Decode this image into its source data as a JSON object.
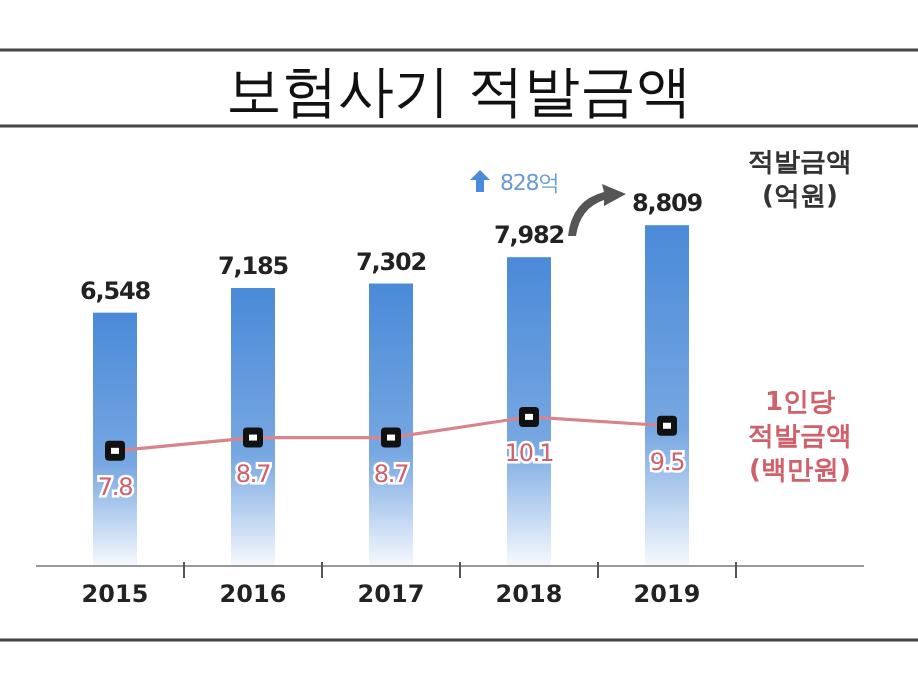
{
  "chart_data": {
    "type": "bar",
    "title": "보험사기 적발금액",
    "categories": [
      "2015",
      "2016",
      "2017",
      "2018",
      "2019"
    ],
    "series": [
      {
        "name": "적발금액 (억원)",
        "color": "#4a8ad8",
        "values": [
          6548,
          7185,
          7302,
          7982,
          8809
        ],
        "value_labels": [
          "6,548",
          "7,185",
          "7,302",
          "7,982",
          "8,809"
        ]
      },
      {
        "name": "1인당 적발금액 (백만원)",
        "type": "line",
        "axis": "y2",
        "color": "#d8848c",
        "marker": "square",
        "values": [
          7.8,
          8.7,
          8.7,
          10.1,
          9.5
        ]
      }
    ],
    "data_labels": true,
    "tick_labels": "x",
    "legend": "right",
    "annotations": [
      "828억"
    ]
  }
}
